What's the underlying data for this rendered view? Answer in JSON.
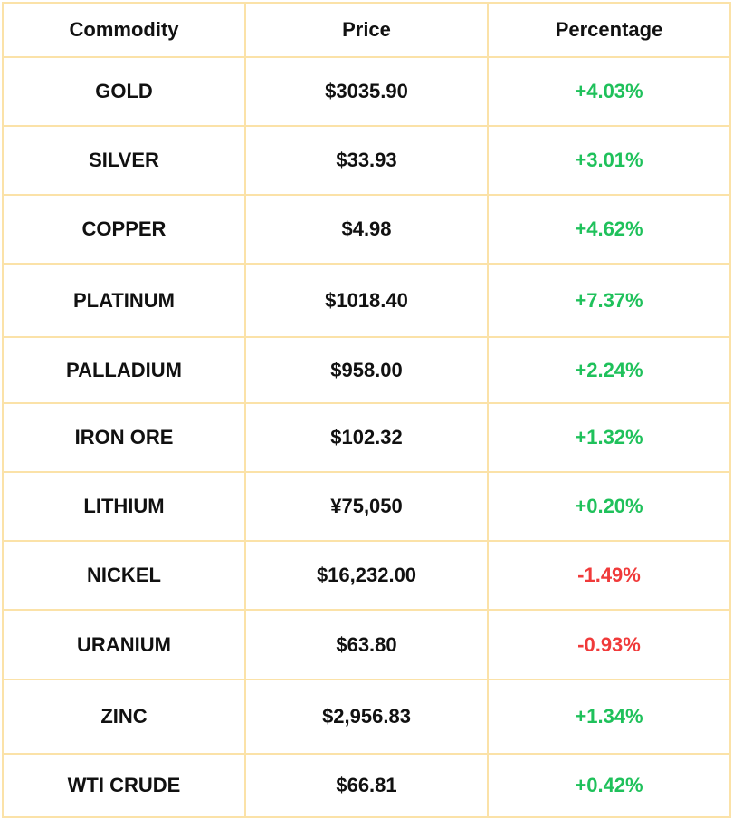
{
  "headers": {
    "commodity": "Commodity",
    "price": "Price",
    "percentage": "Percentage"
  },
  "colors": {
    "border": "#fbe2a8",
    "positive": "#1fc15b",
    "negative": "#f03a3a",
    "text": "#111111"
  },
  "rows": [
    {
      "commodity": "GOLD",
      "price": "$3035.90",
      "percentage": "+4.03%",
      "direction": "up"
    },
    {
      "commodity": "SILVER",
      "price": "$33.93",
      "percentage": "+3.01%",
      "direction": "up"
    },
    {
      "commodity": "COPPER",
      "price": "$4.98",
      "percentage": "+4.62%",
      "direction": "up"
    },
    {
      "commodity": "PLATINUM",
      "price": "$1018.40",
      "percentage": "+7.37%",
      "direction": "up"
    },
    {
      "commodity": "PALLADIUM",
      "price": "$958.00",
      "percentage": "+2.24%",
      "direction": "up"
    },
    {
      "commodity": "IRON ORE",
      "price": "$102.32",
      "percentage": "+1.32%",
      "direction": "up"
    },
    {
      "commodity": "LITHIUM",
      "price": "¥75,050",
      "percentage": "+0.20%",
      "direction": "up"
    },
    {
      "commodity": "NICKEL",
      "price": "$16,232.00",
      "percentage": "-1.49%",
      "direction": "down"
    },
    {
      "commodity": "URANIUM",
      "price": "$63.80",
      "percentage": "-0.93%",
      "direction": "down"
    },
    {
      "commodity": "ZINC",
      "price": "$2,956.83",
      "percentage": "+1.34%",
      "direction": "up"
    },
    {
      "commodity": "WTI CRUDE",
      "price": "$66.81",
      "percentage": "+0.42%",
      "direction": "up"
    }
  ]
}
